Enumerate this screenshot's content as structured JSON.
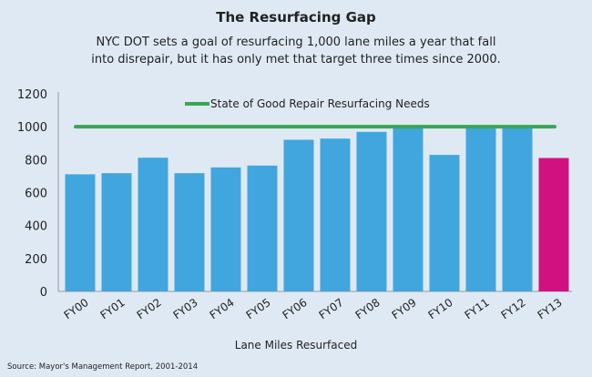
{
  "chart_data": {
    "type": "bar",
    "title": "The Resurfacing Gap",
    "subtitle_lines": [
      "NYC DOT sets a goal of resurfacing 1,000 lane miles a year that fall",
      "into disrepair, but it has only met that target three times since 2000."
    ],
    "xlabel": "Lane Miles Resurfaced",
    "ylabel": "",
    "ylim": [
      0,
      1200
    ],
    "yticks": [
      0,
      200,
      400,
      600,
      800,
      1000,
      1200
    ],
    "categories": [
      "FY00",
      "FY01",
      "FY02",
      "FY03",
      "FY04",
      "FY05",
      "FY06",
      "FY07",
      "FY08",
      "FY09",
      "FY10",
      "FY11",
      "FY12",
      "FY13"
    ],
    "values": [
      711,
      718,
      812,
      718,
      753,
      764,
      921,
      928,
      969,
      1005,
      829,
      1005,
      1005,
      810
    ],
    "bar_colors": [
      "#42a6de",
      "#42a6de",
      "#42a6de",
      "#42a6de",
      "#42a6de",
      "#42a6de",
      "#42a6de",
      "#42a6de",
      "#42a6de",
      "#42a6de",
      "#42a6de",
      "#42a6de",
      "#42a6de",
      "#d1117f"
    ],
    "reference_line": {
      "name": "State of Good Repair Resurfacing Needs",
      "value": 1000,
      "color": "#3aa655"
    },
    "legend_position": "top-center",
    "grid": false,
    "source": "Source: Mayor's Management Report, 2001-2014"
  }
}
